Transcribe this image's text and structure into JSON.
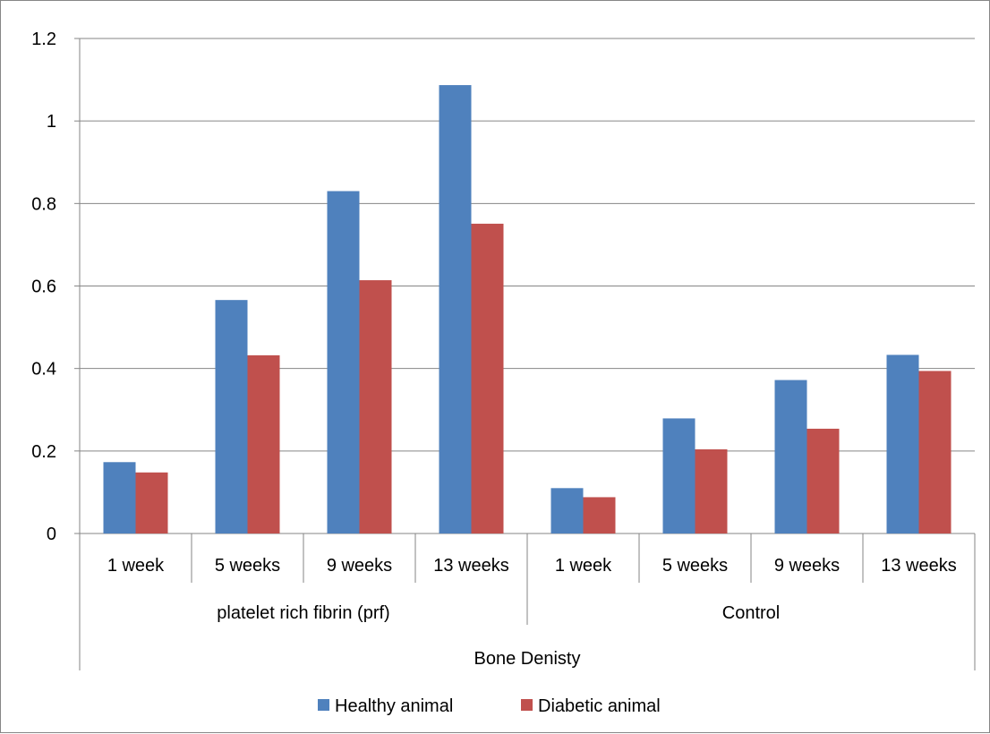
{
  "chart_data": {
    "type": "bar",
    "title": "",
    "xlabel": "",
    "ylabel": "",
    "ylim": [
      0,
      1.2
    ],
    "ytick_labels": [
      "0",
      "0.2",
      "0.4",
      "0.6",
      "0.8",
      "1",
      "1.2"
    ],
    "categories": [
      "1 week",
      "5 weeks",
      "9 weeks",
      "13 weeks",
      "1 week",
      "5 weeks",
      "9 weeks",
      "13 weeks"
    ],
    "groups": [
      {
        "label": "platelet rich fibrin (prf)",
        "span": 4
      },
      {
        "label": "Control",
        "span": 4
      }
    ],
    "top_group": "Bone Denisty",
    "series": [
      {
        "name": "Healthy animal",
        "color": "#4F81BD",
        "values": [
          0.173,
          0.566,
          0.83,
          1.087,
          0.11,
          0.279,
          0.372,
          0.433
        ]
      },
      {
        "name": "Diabetic animal",
        "color": "#C0504D",
        "values": [
          0.148,
          0.432,
          0.614,
          0.751,
          0.088,
          0.204,
          0.254,
          0.394
        ]
      }
    ],
    "grid": true,
    "legend_position": "bottom"
  }
}
